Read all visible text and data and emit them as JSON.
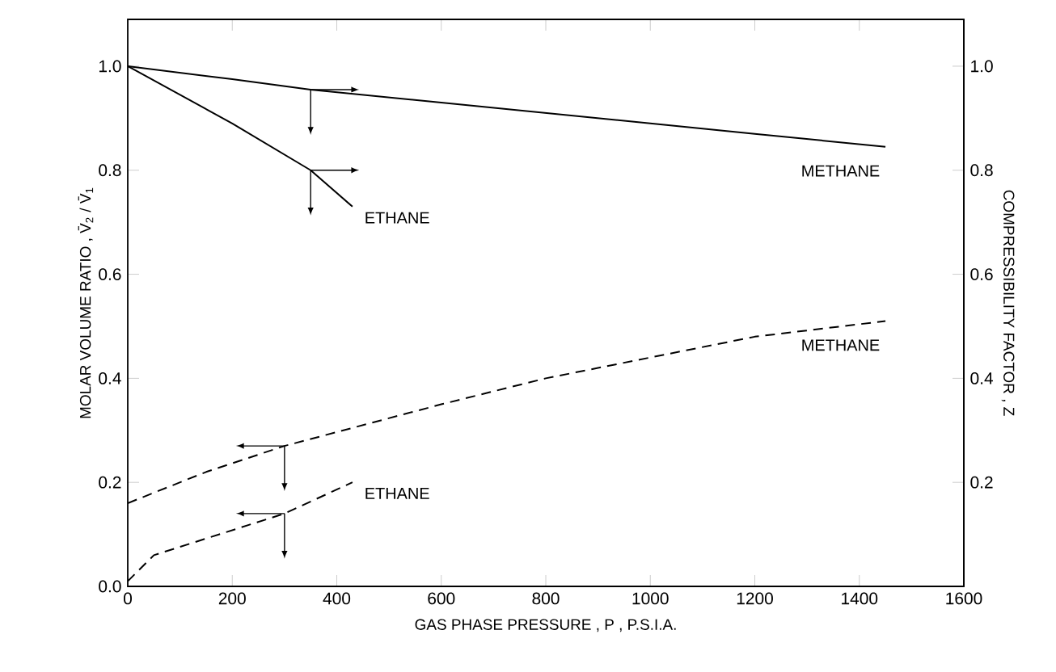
{
  "chart_data": {
    "type": "line",
    "xlabel": "GAS PHASE PRESSURE , P , P.S.I.A.",
    "ylabel": "MOLAR VOLUME RATIO , V̄$_{2}$ / V̄$_{1}$",
    "y2label": "COMPRESSIBILITY FACTOR , Z",
    "xlim": [
      0,
      1600
    ],
    "xticks": [
      0,
      200,
      400,
      600,
      800,
      1000,
      1200,
      1400,
      1600
    ],
    "ylim": [
      0,
      1.09
    ],
    "yticks": [
      {
        "value": 0,
        "label": "0.0"
      },
      0.2,
      0.4,
      0.6,
      0.8,
      {
        "value": 1,
        "label": "1.0"
      }
    ],
    "y2lim": [
      0,
      1.09
    ],
    "y2ticks": [
      0.2,
      0.4,
      0.6,
      0.8,
      {
        "value": 1,
        "label": "1.0"
      }
    ],
    "marker": "none",
    "series": [
      {
        "name": "METHANE",
        "color": "#000000",
        "axis": "y2",
        "line_style": "solid",
        "x": [
          0,
          200,
          350,
          600,
          800,
          1000,
          1200,
          1450
        ],
        "values": [
          1.0,
          0.975,
          0.955,
          0.93,
          0.91,
          0.89,
          0.87,
          0.845
        ]
      },
      {
        "name": "ETHANE",
        "color": "#000000",
        "axis": "y2",
        "line_style": "solid",
        "x": [
          0,
          200,
          350,
          430
        ],
        "values": [
          1.0,
          0.89,
          0.8,
          0.73
        ]
      },
      {
        "name": "METHANE",
        "color": "#000000",
        "axis": "y",
        "line_style": "dashed",
        "x": [
          0,
          150,
          300,
          600,
          800,
          1000,
          1200,
          1450
        ],
        "values": [
          0.16,
          0.22,
          0.27,
          0.35,
          0.4,
          0.44,
          0.48,
          0.51
        ]
      },
      {
        "name": "ETHANE",
        "color": "#000000",
        "axis": "y",
        "line_style": "dashed",
        "x": [
          0,
          50,
          300,
          430
        ],
        "values": [
          0.01,
          0.06,
          0.14,
          0.2
        ]
      }
    ]
  }
}
